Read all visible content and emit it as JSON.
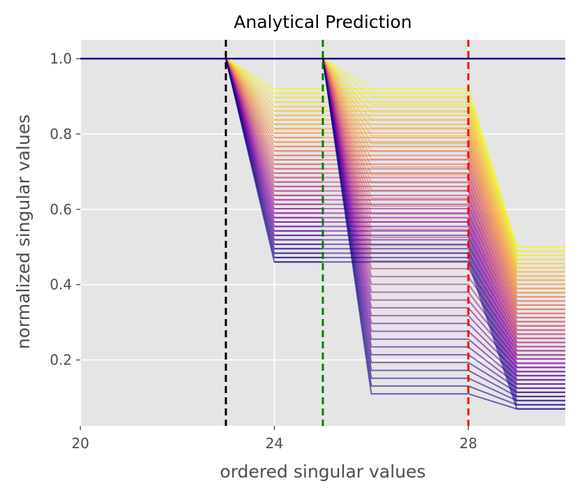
{
  "chart_data": {
    "type": "line",
    "title": "Analytical Prediction",
    "xlabel": "ordered singular values",
    "ylabel": "normalized singular values",
    "xlim": [
      20,
      30
    ],
    "ylim": [
      0.025,
      1.05
    ],
    "xticks": [
      20,
      24,
      28
    ],
    "xtick_labels": [
      "20",
      "24",
      "28"
    ],
    "yticks": [
      0.2,
      0.4,
      0.6,
      0.8,
      1.0
    ],
    "ytick_labels": [
      "0.2",
      "0.4",
      "0.6",
      "0.8",
      "1.0"
    ],
    "grid": true,
    "background": "#e5e5e5",
    "colormap": "plasma",
    "series_count": 40,
    "baseline": {
      "y": 1.0,
      "color": "#000080"
    },
    "curve_family": {
      "x": [
        20,
        23,
        24,
        25,
        26,
        28,
        29,
        30
      ],
      "step1": {
        "from_x": 23,
        "to_x": 24,
        "y_top": 1.0,
        "y_range": [
          0.92,
          0.46
        ]
      },
      "step2": {
        "from_x": 25,
        "to_x": 26,
        "y_top": 1.0,
        "y_range": [
          0.92,
          0.11
        ]
      },
      "step3": {
        "from_x": 28,
        "to_x": 29,
        "y_range_before": [
          0.92,
          0.11
        ],
        "y_range_after": [
          0.5,
          0.07
        ]
      }
    },
    "vlines": [
      {
        "x": 23,
        "color": "#000000",
        "style": "dashed"
      },
      {
        "x": 25,
        "color": "#008000",
        "style": "dashed"
      },
      {
        "x": 28,
        "color": "#ff0000",
        "style": "dashed"
      }
    ]
  }
}
